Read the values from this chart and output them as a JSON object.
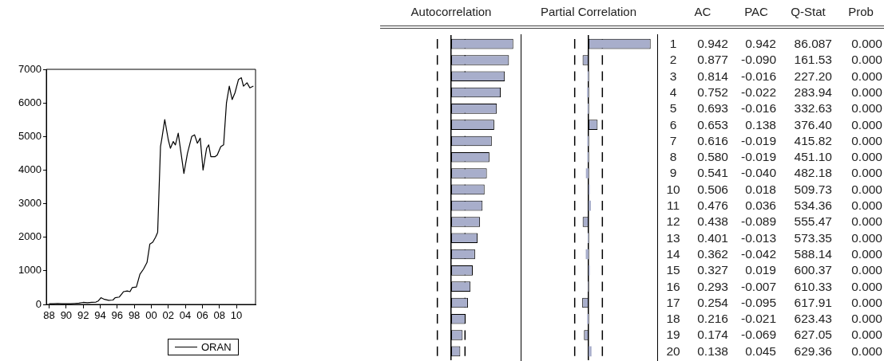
{
  "chart_data": [
    {
      "type": "line",
      "x": [
        "1988-01",
        "1988-07",
        "1989-01",
        "1989-07",
        "1990-01",
        "1990-07",
        "1991-01",
        "1991-07",
        "1992-01",
        "1992-07",
        "1993-01",
        "1993-07",
        "1993-10",
        "1994-02",
        "1994-07",
        "1995-01",
        "1995-07",
        "1995-10",
        "1996-04",
        "1996-10",
        "1997-03",
        "1997-07",
        "1997-10",
        "1998-04",
        "1998-09",
        "1999-02",
        "1999-07",
        "1999-11",
        "2000-03",
        "2000-07",
        "2000-10",
        "2001-02",
        "2001-04",
        "2001-08",
        "2002-01",
        "2002-04",
        "2002-08",
        "2002-11",
        "2003-03",
        "2003-07",
        "2003-11",
        "2004-04",
        "2004-10",
        "2005-02",
        "2005-06",
        "2005-10",
        "2006-02",
        "2006-07",
        "2006-10",
        "2007-01",
        "2007-07",
        "2007-10",
        "2008-03",
        "2008-07",
        "2008-11",
        "2009-03",
        "2009-07",
        "2009-11",
        "2010-04",
        "2010-08",
        "2010-11",
        "2011-04",
        "2011-08",
        "2012-01"
      ],
      "series": [
        {
          "name": "ORAN",
          "color": "#000000",
          "values": [
            20,
            20,
            30,
            20,
            20,
            20,
            30,
            40,
            60,
            50,
            60,
            70,
            100,
            200,
            150,
            120,
            130,
            200,
            220,
            380,
            400,
            380,
            500,
            520,
            900,
            1050,
            1250,
            1800,
            1850,
            2000,
            2150,
            4700,
            4950,
            5500,
            4900,
            4650,
            4850,
            4750,
            5100,
            4500,
            3900,
            4500,
            5000,
            5050,
            4800,
            4950,
            4000,
            4650,
            4750,
            4400,
            4400,
            4450,
            4700,
            4750,
            6000,
            6500,
            6100,
            6300,
            6700,
            6750,
            6500,
            6600,
            6450,
            6500
          ]
        }
      ],
      "xlim": [
        "1987-09",
        "2012-04"
      ],
      "xticks": [
        {
          "value": "1988",
          "label": "88"
        },
        {
          "value": "1990",
          "label": "90"
        },
        {
          "value": "1992",
          "label": "92"
        },
        {
          "value": "1994",
          "label": "94"
        },
        {
          "value": "1996",
          "label": "96"
        },
        {
          "value": "1998",
          "label": "98"
        },
        {
          "value": "2000",
          "label": "00"
        },
        {
          "value": "2002",
          "label": "02"
        },
        {
          "value": "2004",
          "label": "04"
        },
        {
          "value": "2006",
          "label": "06"
        },
        {
          "value": "2008",
          "label": "08"
        },
        {
          "value": "2010",
          "label": "10"
        }
      ],
      "ylim": [
        0,
        7000
      ],
      "yticks": [
        0,
        1000,
        2000,
        3000,
        4000,
        5000,
        6000,
        7000
      ],
      "legend": "bottom"
    },
    {
      "type": "bar",
      "orientation": "horizontal",
      "title": "Autocorrelation",
      "categories": [
        "1",
        "2",
        "3",
        "4",
        "5",
        "6",
        "7",
        "8",
        "9",
        "10",
        "11",
        "12",
        "13",
        "14",
        "15",
        "16",
        "17",
        "18",
        "19",
        "20"
      ],
      "series": [
        {
          "name": "AC",
          "color": "#a8aecb",
          "values": [
            0.942,
            0.877,
            0.814,
            0.752,
            0.693,
            0.653,
            0.616,
            0.58,
            0.541,
            0.506,
            0.476,
            0.438,
            0.401,
            0.362,
            0.327,
            0.293,
            0.254,
            0.216,
            0.174,
            0.138
          ],
          "value_labels": [
            "0.942",
            "0.877",
            "0.814",
            "0.752",
            "0.693",
            "0.653",
            "0.616",
            "0.580",
            "0.541",
            "0.506",
            "0.476",
            "0.438",
            "0.401",
            "0.362",
            "0.327",
            "0.293",
            "0.254",
            "0.216",
            "0.174",
            "0.138"
          ]
        }
      ],
      "ref_lines": [
        {
          "axis": "x",
          "value": -0.21,
          "color": "#000000",
          "line_style": "dashed"
        },
        {
          "axis": "x",
          "value": 0.21,
          "color": "#000000",
          "line_style": "dashed"
        }
      ]
    },
    {
      "type": "bar",
      "orientation": "horizontal",
      "title": "Partial Correlation",
      "categories": [
        null,
        null,
        null,
        null,
        null,
        null,
        null,
        null,
        null,
        null,
        null,
        null,
        null,
        null,
        null,
        null,
        null,
        null,
        null,
        null
      ],
      "series": [
        {
          "name": "PAC",
          "color": "#a8aecb",
          "values": [
            0.942,
            -0.09,
            -0.016,
            -0.022,
            -0.016,
            0.138,
            -0.019,
            -0.019,
            -0.04,
            0.018,
            0.036,
            -0.089,
            -0.013,
            -0.042,
            0.019,
            -0.007,
            -0.095,
            -0.021,
            -0.069,
            0.045
          ],
          "value_labels": [
            "0.942",
            "-0.090",
            "-0.016",
            "-0.022",
            "-0.016",
            "0.138",
            "-0.019",
            "-0.019",
            "-0.040",
            "0.018",
            "0.036",
            "-0.089",
            "-0.013",
            "-0.042",
            "0.019",
            "-0.007",
            "-0.095",
            "-0.021",
            "-0.069",
            "0.045"
          ]
        }
      ],
      "ref_lines": [
        {
          "axis": "x",
          "value": -0.21,
          "color": "#000000",
          "line_style": "dashed"
        },
        {
          "axis": "x",
          "value": 0.21,
          "color": "#000000",
          "line_style": "dashed"
        }
      ]
    },
    {
      "type": "other",
      "annotations": [
        "Q-Stat",
        "86.087",
        "161.53",
        "227.20",
        "283.94",
        "332.63",
        "376.40",
        "415.82",
        "451.10",
        "482.18",
        "509.73",
        "534.36",
        "555.47",
        "573.35",
        "588.14",
        "600.37",
        "610.33",
        "617.91",
        "623.43",
        "627.05",
        "629.36",
        "Prob",
        "0.000",
        "0.000",
        "0.000",
        "0.000",
        "0.000",
        "0.000",
        "0.000",
        "0.000",
        "0.000",
        "0.000",
        "0.000",
        "0.000",
        "0.000",
        "0.000",
        "0.000",
        "0.000",
        "0.000",
        "0.000",
        "0.000",
        "0.000"
      ]
    }
  ]
}
